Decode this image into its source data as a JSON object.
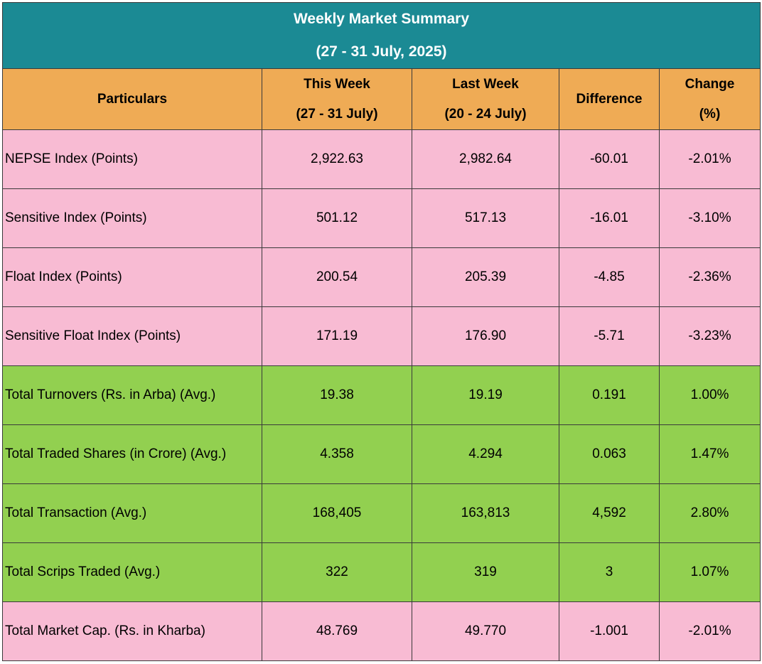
{
  "title": {
    "line1": "Weekly Market Summary",
    "line2": "(27 - 31 July, 2025)"
  },
  "headers": {
    "particulars": "Particulars",
    "this_week": "This Week",
    "this_week_range": "(27 - 31 July)",
    "last_week": "Last Week",
    "last_week_range": "(20 - 24 July)",
    "difference": "Difference",
    "change": "Change",
    "change_unit": "(%)"
  },
  "colors": {
    "title_bg": "#1b8a94",
    "header_bg": "#efab55",
    "index_rows_bg": "#f8bbd3",
    "activity_rows_bg": "#92d050"
  },
  "rows": [
    {
      "label": "NEPSE Index (Points)",
      "this_week": "2,922.63",
      "last_week": "2,982.64",
      "difference": "-60.01",
      "change": "-2.01%",
      "group": "pink"
    },
    {
      "label": "Sensitive Index (Points)",
      "this_week": "501.12",
      "last_week": "517.13",
      "difference": "-16.01",
      "change": "-3.10%",
      "group": "pink"
    },
    {
      "label": "Float Index (Points)",
      "this_week": "200.54",
      "last_week": "205.39",
      "difference": "-4.85",
      "change": "-2.36%",
      "group": "pink"
    },
    {
      "label": "Sensitive Float Index (Points)",
      "this_week": "171.19",
      "last_week": "176.90",
      "difference": "-5.71",
      "change": "-3.23%",
      "group": "pink"
    },
    {
      "label": "Total Turnovers (Rs. in Arba) (Avg.)",
      "this_week": "19.38",
      "last_week": "19.19",
      "difference": "0.191",
      "change": "1.00%",
      "group": "green"
    },
    {
      "label": "Total Traded Shares (in Crore) (Avg.)",
      "this_week": "4.358",
      "last_week": "4.294",
      "difference": "0.063",
      "change": "1.47%",
      "group": "green"
    },
    {
      "label": "Total Transaction (Avg.)",
      "this_week": "168,405",
      "last_week": "163,813",
      "difference": "4,592",
      "change": "2.80%",
      "group": "green"
    },
    {
      "label": "Total Scrips Traded (Avg.)",
      "this_week": "322",
      "last_week": "319",
      "difference": "3",
      "change": "1.07%",
      "group": "green"
    },
    {
      "label": "Total Market Cap. (Rs. in Kharba)",
      "this_week": "48.769",
      "last_week": "49.770",
      "difference": "-1.001",
      "change": "-2.01%",
      "group": "pink"
    }
  ]
}
